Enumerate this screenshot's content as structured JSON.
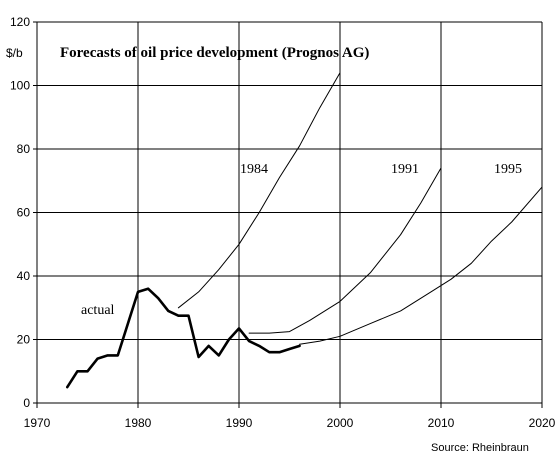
{
  "chart_data": {
    "type": "line",
    "title": "Forecasts of oil price development (Prognos AG)",
    "ylabel": "$/b",
    "xlabel": "",
    "source": "Source: Rheinbraun",
    "xlim": [
      1970,
      2020
    ],
    "ylim": [
      0,
      120
    ],
    "xticks": [
      1970,
      1980,
      1990,
      2000,
      2010,
      2020
    ],
    "yticks": [
      0,
      20,
      40,
      60,
      80,
      100,
      120
    ],
    "grid": true,
    "legend": "none",
    "series": [
      {
        "name": "actual",
        "style": "bold",
        "points": [
          [
            1973,
            5
          ],
          [
            1974,
            10
          ],
          [
            1975,
            10
          ],
          [
            1976,
            14
          ],
          [
            1977,
            15
          ],
          [
            1978,
            15
          ],
          [
            1979,
            25
          ],
          [
            1980,
            35
          ],
          [
            1981,
            36
          ],
          [
            1982,
            33
          ],
          [
            1983,
            29
          ],
          [
            1984,
            27.5
          ],
          [
            1985,
            27.5
          ],
          [
            1986,
            14.5
          ],
          [
            1987,
            18
          ],
          [
            1988,
            15
          ],
          [
            1989,
            20
          ],
          [
            1990,
            23.5
          ],
          [
            1991,
            19.5
          ],
          [
            1992,
            18
          ],
          [
            1993,
            16
          ],
          [
            1994,
            16
          ],
          [
            1995,
            17
          ],
          [
            1996,
            18
          ]
        ]
      },
      {
        "name": "1984",
        "style": "thin",
        "points": [
          [
            1984,
            30
          ],
          [
            1986,
            35
          ],
          [
            1988,
            42
          ],
          [
            1990,
            50
          ],
          [
            1992,
            60
          ],
          [
            1994,
            71
          ],
          [
            1996,
            81
          ],
          [
            1998,
            93
          ],
          [
            2000,
            104
          ]
        ]
      },
      {
        "name": "1991",
        "style": "thin",
        "points": [
          [
            1991,
            22
          ],
          [
            1993,
            22
          ],
          [
            1995,
            22.5
          ],
          [
            1997,
            26
          ],
          [
            2000,
            32
          ],
          [
            2003,
            41
          ],
          [
            2006,
            53
          ],
          [
            2008,
            63
          ],
          [
            2010,
            74
          ]
        ]
      },
      {
        "name": "1995",
        "style": "thin",
        "points": [
          [
            1996,
            18.5
          ],
          [
            1998,
            19.5
          ],
          [
            2000,
            21
          ],
          [
            2003,
            25
          ],
          [
            2006,
            29
          ],
          [
            2009,
            35
          ],
          [
            2011,
            39
          ],
          [
            2013,
            44
          ],
          [
            2015,
            51
          ],
          [
            2017,
            57
          ],
          [
            2020,
            68
          ]
        ]
      }
    ]
  }
}
